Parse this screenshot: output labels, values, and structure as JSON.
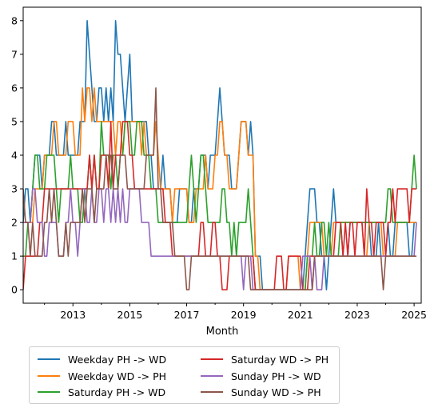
{
  "chart_data": {
    "type": "line",
    "title": "",
    "xlabel": "Month",
    "ylabel": "",
    "x_start": "2011-04",
    "x_end": "2025-04",
    "xlim": [
      "2011-04",
      "2025-04"
    ],
    "ylim": [
      -0.4,
      8.4
    ],
    "x_ticks": [
      "2013",
      "2015",
      "2017",
      "2019",
      "2021",
      "2023",
      "2025"
    ],
    "y_ticks": [
      "0",
      "1",
      "2",
      "3",
      "4",
      "5",
      "6",
      "7",
      "8"
    ],
    "grid": false,
    "legend_position": "below",
    "series": [
      {
        "name": "Weekday PH -> WD",
        "color": "#1f77b4",
        "values": [
          2,
          3,
          3,
          2,
          3,
          4,
          4,
          4,
          3,
          4,
          4,
          4,
          5,
          5,
          4,
          4,
          4,
          4,
          5,
          4,
          4,
          4,
          4,
          4,
          5,
          5,
          5,
          8,
          7,
          6,
          5,
          5,
          6,
          6,
          5,
          6,
          5,
          6,
          5,
          8,
          7,
          7,
          6,
          5,
          6,
          7,
          5,
          5,
          5,
          5,
          5,
          5,
          5,
          4,
          4,
          3,
          3,
          3,
          3,
          4,
          3,
          3,
          3,
          2,
          2,
          2,
          3,
          3,
          3,
          3,
          2,
          2,
          3,
          3,
          3,
          4,
          4,
          4,
          3,
          4,
          4,
          4,
          5,
          6,
          5,
          4,
          4,
          4,
          3,
          3,
          3,
          4,
          5,
          5,
          5,
          4,
          5,
          4,
          1,
          1,
          1,
          0,
          0,
          0,
          0,
          0,
          0,
          0,
          0,
          0,
          0,
          0,
          0,
          0,
          0,
          0,
          0,
          0,
          0,
          1,
          2,
          3,
          3,
          3,
          2,
          2,
          1,
          1,
          0,
          1,
          2,
          3,
          2,
          2,
          2,
          1,
          1,
          1,
          2,
          2,
          2,
          2,
          2,
          2,
          2,
          2,
          2,
          1,
          1,
          1,
          2,
          1,
          1,
          1,
          2,
          1,
          1,
          2,
          2,
          2,
          2,
          2,
          2,
          1,
          1,
          2,
          2
        ]
      },
      {
        "name": "Weekday WD -> PH",
        "color": "#ff7f0e",
        "values": [
          2,
          2,
          2,
          2,
          2,
          3,
          3,
          3,
          3,
          4,
          4,
          4,
          4,
          5,
          5,
          4,
          4,
          4,
          4,
          5,
          5,
          5,
          4,
          4,
          4,
          6,
          5,
          6,
          6,
          5,
          6,
          5,
          5,
          5,
          5,
          5,
          5,
          5,
          5,
          4,
          5,
          5,
          4,
          5,
          5,
          5,
          5,
          5,
          5,
          5,
          4,
          5,
          4,
          4,
          4,
          4,
          5,
          4,
          3,
          3,
          3,
          3,
          3,
          2,
          3,
          3,
          3,
          3,
          3,
          3,
          2,
          2,
          2,
          3,
          3,
          3,
          3,
          4,
          3,
          3,
          3,
          4,
          4,
          5,
          5,
          4,
          4,
          3,
          3,
          3,
          3,
          4,
          5,
          5,
          5,
          4,
          4,
          4,
          1,
          1,
          0,
          0,
          0,
          0,
          0,
          0,
          0,
          0,
          0,
          0,
          0,
          0,
          1,
          1,
          1,
          1,
          1,
          0,
          0,
          0,
          1,
          2,
          2,
          2,
          2,
          2,
          2,
          1,
          1,
          1,
          1,
          2,
          2,
          2,
          2,
          2,
          2,
          2,
          2,
          2,
          2,
          2,
          2,
          2,
          1,
          1,
          2,
          2,
          2,
          2,
          2,
          2,
          1,
          1,
          1,
          1,
          1,
          1,
          2,
          2,
          2,
          2,
          2,
          2,
          2,
          2,
          2
        ]
      },
      {
        "name": "Saturday PH -> WD",
        "color": "#2ca02c",
        "values": [
          1,
          1,
          2,
          2,
          3,
          4,
          4,
          3,
          3,
          3,
          4,
          4,
          4,
          4,
          3,
          2,
          3,
          3,
          3,
          3,
          4,
          3,
          3,
          3,
          2,
          2,
          3,
          3,
          4,
          3,
          4,
          3,
          3,
          5,
          4,
          4,
          4,
          3,
          4,
          4,
          3,
          4,
          4,
          5,
          5,
          5,
          4,
          4,
          5,
          5,
          5,
          4,
          4,
          4,
          3,
          3,
          3,
          2,
          2,
          2,
          2,
          2,
          2,
          2,
          2,
          2,
          2,
          2,
          2,
          2,
          3,
          4,
          3,
          2,
          3,
          4,
          4,
          3,
          2,
          2,
          2,
          2,
          2,
          2,
          3,
          3,
          2,
          2,
          1,
          2,
          1,
          2,
          2,
          2,
          2,
          3,
          2,
          1,
          0,
          0,
          0,
          0,
          0,
          0,
          0,
          0,
          0,
          0,
          0,
          0,
          0,
          0,
          0,
          0,
          0,
          0,
          0,
          0,
          0,
          0,
          1,
          1,
          1,
          2,
          1,
          1,
          2,
          2,
          1,
          2,
          1,
          1,
          1,
          1,
          2,
          2,
          2,
          2,
          2,
          2,
          2,
          2,
          2,
          2,
          2,
          2,
          2,
          2,
          2,
          2,
          2,
          2,
          2,
          2,
          3,
          3,
          2,
          2,
          2,
          2,
          2,
          2,
          2,
          2,
          3,
          4,
          3
        ]
      },
      {
        "name": "Saturday WD -> PH",
        "color": "#d62728",
        "values": [
          0,
          1,
          1,
          1,
          1,
          1,
          1,
          2,
          2,
          3,
          3,
          3,
          3,
          3,
          3,
          3,
          3,
          3,
          3,
          3,
          3,
          3,
          3,
          3,
          3,
          3,
          3,
          3,
          4,
          3,
          4,
          3,
          3,
          4,
          4,
          4,
          3,
          5,
          3,
          4,
          4,
          4,
          5,
          5,
          5,
          4,
          4,
          3,
          3,
          3,
          3,
          3,
          3,
          3,
          3,
          3,
          3,
          3,
          3,
          3,
          2,
          2,
          2,
          1,
          1,
          1,
          1,
          1,
          1,
          1,
          1,
          1,
          1,
          1,
          1,
          2,
          2,
          1,
          1,
          1,
          2,
          2,
          1,
          1,
          0,
          0,
          0,
          1,
          1,
          1,
          1,
          1,
          1,
          1,
          1,
          1,
          1,
          1,
          0,
          0,
          0,
          0,
          0,
          0,
          0,
          0,
          0,
          1,
          1,
          1,
          0,
          0,
          1,
          1,
          1,
          1,
          1,
          1,
          0,
          0,
          0,
          1,
          1,
          1,
          1,
          1,
          1,
          1,
          1,
          1,
          1,
          1,
          2,
          2,
          2,
          1,
          2,
          1,
          2,
          2,
          1,
          2,
          2,
          2,
          1,
          3,
          2,
          2,
          1,
          2,
          2,
          2,
          2,
          1,
          2,
          2,
          3,
          2,
          3,
          3,
          3,
          3,
          3,
          2,
          3,
          3,
          3
        ]
      },
      {
        "name": "Sunday PH -> WD",
        "color": "#9467bd",
        "values": [
          2,
          2,
          2,
          2,
          3,
          3,
          2,
          2,
          2,
          1,
          1,
          2,
          2,
          2,
          2,
          1,
          1,
          1,
          2,
          2,
          3,
          2,
          2,
          1,
          2,
          3,
          3,
          2,
          2,
          3,
          2,
          2,
          3,
          3,
          2,
          3,
          3,
          2,
          3,
          2,
          3,
          2,
          3,
          2,
          2,
          3,
          3,
          3,
          3,
          3,
          2,
          2,
          2,
          2,
          1,
          1,
          1,
          1,
          1,
          1,
          1,
          1,
          1,
          1,
          1,
          1,
          1,
          1,
          1,
          1,
          1,
          1,
          1,
          1,
          1,
          1,
          1,
          1,
          1,
          1,
          1,
          1,
          1,
          1,
          1,
          1,
          1,
          1,
          1,
          1,
          1,
          1,
          1,
          0,
          1,
          1,
          1,
          0,
          0,
          0,
          0,
          0,
          0,
          0,
          0,
          0,
          0,
          0,
          0,
          0,
          0,
          0,
          0,
          0,
          0,
          0,
          0,
          0,
          1,
          1,
          1,
          1,
          0,
          1,
          0,
          0,
          0,
          1,
          1,
          1,
          1,
          1,
          1,
          1,
          1,
          1,
          1,
          1,
          1,
          1,
          1,
          1,
          1,
          1,
          1,
          1,
          1,
          1,
          1,
          1,
          1,
          1,
          1,
          1,
          1,
          1,
          1,
          1,
          1,
          1,
          1,
          1,
          1,
          1,
          1,
          1,
          2
        ]
      },
      {
        "name": "Sunday WD -> PH",
        "color": "#8c564b",
        "values": [
          3,
          2,
          2,
          1,
          2,
          1,
          1,
          1,
          1,
          2,
          2,
          3,
          2,
          3,
          2,
          1,
          1,
          1,
          2,
          1,
          2,
          2,
          2,
          2,
          2,
          3,
          2,
          3,
          3,
          3,
          2,
          3,
          3,
          3,
          3,
          4,
          4,
          4,
          3,
          3,
          3,
          4,
          4,
          4,
          3,
          3,
          3,
          3,
          3,
          3,
          3,
          3,
          4,
          4,
          4,
          4,
          6,
          3,
          3,
          2,
          2,
          2,
          2,
          2,
          1,
          1,
          1,
          1,
          1,
          0,
          0,
          1,
          1,
          1,
          1,
          1,
          1,
          1,
          1,
          1,
          1,
          1,
          1,
          1,
          1,
          1,
          1,
          1,
          1,
          1,
          1,
          1,
          1,
          1,
          1,
          1,
          0,
          0,
          0,
          0,
          0,
          0,
          0,
          0,
          0,
          0,
          0,
          0,
          0,
          0,
          0,
          0,
          0,
          0,
          0,
          0,
          0,
          0,
          0,
          0,
          0,
          0,
          0,
          1,
          1,
          1,
          1,
          1,
          1,
          1,
          1,
          1,
          1,
          1,
          1,
          1,
          1,
          1,
          1,
          1,
          1,
          1,
          1,
          1,
          1,
          1,
          1,
          1,
          1,
          1,
          1,
          1,
          0,
          1,
          1,
          1,
          1,
          1,
          1,
          1,
          1,
          1,
          1,
          1,
          1,
          1,
          1
        ]
      }
    ]
  }
}
